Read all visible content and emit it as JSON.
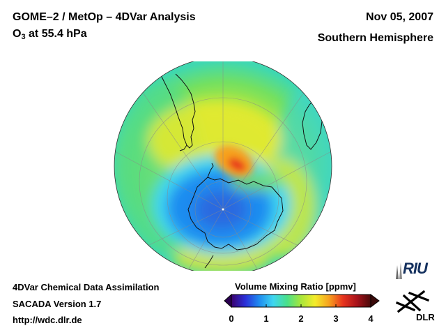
{
  "header": {
    "title_line1": "GOME–2 / MetOp – 4DVar Analysis",
    "species": "O",
    "species_sub": "3",
    "level_text": " at 55.4 hPa",
    "date": "Nov 05, 2007",
    "hemisphere": "Southern Hemisphere"
  },
  "footer": {
    "line1": "4DVar Chemical Data Assimilation",
    "line2": "SACADA Version 1.7",
    "line3": "http://wdc.dlr.de"
  },
  "colorbar": {
    "title": "Volume Mixing Ratio [ppmv]",
    "ticks": [
      "0",
      "1",
      "2",
      "3",
      "4"
    ],
    "min": 0,
    "max": 4,
    "colors": [
      "#3a006e",
      "#2a2fd8",
      "#1f8cf0",
      "#3fd6f0",
      "#49e08a",
      "#a8e63a",
      "#f3ec2a",
      "#f7a21e",
      "#e8351e",
      "#a8121a",
      "#4a0a0a"
    ]
  },
  "logos": {
    "riu": "RIU",
    "dlr": "DLR"
  },
  "map": {
    "projection": "orthographic-south-polar",
    "units": "ppmv"
  }
}
